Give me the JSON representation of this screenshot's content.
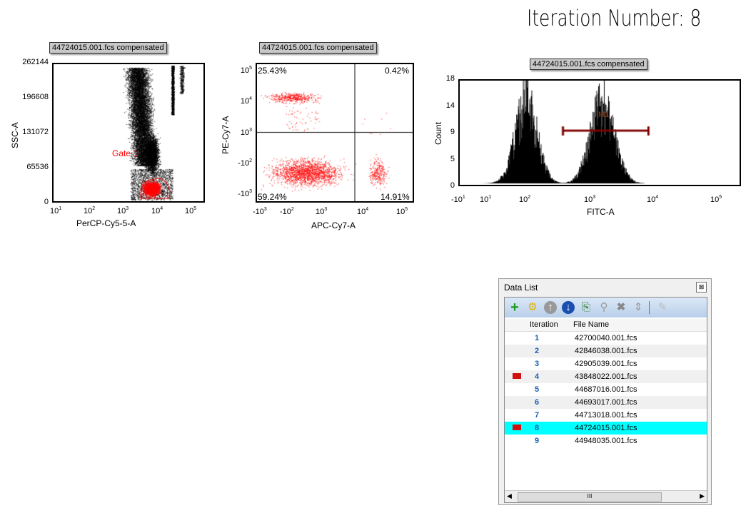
{
  "header": {
    "title": "Iteration Number: 8"
  },
  "plots": [
    {
      "title": "44724015.001.fcs compensated",
      "xlabel": "PerCP-Cy5-5-A",
      "ylabel": "SSC-A",
      "yticks": [
        "262144",
        "196608",
        "131072",
        "65536",
        "0"
      ],
      "xticks": [
        {
          "b": "10",
          "e": "1"
        },
        {
          "b": "10",
          "e": "2"
        },
        {
          "b": "10",
          "e": "3"
        },
        {
          "b": "10",
          "e": "4"
        },
        {
          "b": "10",
          "e": "5"
        }
      ],
      "gate_label": "Gate 1",
      "gate_color": "#ff0000"
    },
    {
      "title": "44724015.001.fcs compensated",
      "xlabel": "APC-Cy7-A",
      "ylabel": "PE-Cy7-A",
      "yticks": [
        {
          "b": "10",
          "e": "5"
        },
        {
          "b": "10",
          "e": "4"
        },
        {
          "b": "10",
          "e": "3"
        },
        {
          "b": "-10",
          "e": "2"
        },
        {
          "b": "-10",
          "e": "3"
        }
      ],
      "xticks": [
        {
          "b": "-10",
          "e": "3"
        },
        {
          "b": "-10",
          "e": "2"
        },
        {
          "b": "10",
          "e": "3"
        },
        {
          "b": "10",
          "e": "4"
        },
        {
          "b": "10",
          "e": "5"
        }
      ],
      "quadrants": {
        "UL": "25.43%",
        "UR": "0.42%",
        "LL": "59.24%",
        "LR": "14.91%"
      }
    },
    {
      "title": "44724015.001.fcs compensated",
      "xlabel": "FITC-A",
      "ylabel": "Count",
      "yticks": [
        "18",
        "14",
        "9",
        "5",
        "0"
      ],
      "xticks": [
        {
          "b": "-10",
          "e": "1"
        },
        {
          "b": "10",
          "e": "1"
        },
        {
          "b": "10",
          "e": "2"
        },
        {
          "b": "10",
          "e": "3"
        },
        {
          "b": "10",
          "e": "4"
        },
        {
          "b": "10",
          "e": "5"
        }
      ],
      "marker_label": "M1",
      "marker_color": "#800000"
    }
  ],
  "chart_data": {
    "type": "histogram",
    "title": "44724015.001.fcs compensated",
    "xlabel": "FITC-A",
    "ylabel": "Count",
    "ylim": [
      0,
      18
    ],
    "peaks": [
      {
        "x": 100,
        "height": 18
      },
      {
        "x": 1500,
        "height": 18
      }
    ],
    "marker": {
      "name": "M1",
      "range": [
        400,
        8500
      ],
      "y": 9
    }
  },
  "datalist": {
    "title": "Data List",
    "close": "⊠",
    "toolbar": [
      "add",
      "settings",
      "move-up",
      "move-down",
      "export",
      "search",
      "delete",
      "sort",
      "edit"
    ],
    "columns": [
      "Iteration",
      "File Name"
    ],
    "rows": [
      {
        "it": "1",
        "fn": "42700040.001.fcs",
        "flag": false
      },
      {
        "it": "2",
        "fn": "42846038.001.fcs",
        "flag": false
      },
      {
        "it": "3",
        "fn": "42905039.001.fcs",
        "flag": false
      },
      {
        "it": "4",
        "fn": "43848022.001.fcs",
        "flag": true
      },
      {
        "it": "5",
        "fn": "44687016.001.fcs",
        "flag": false
      },
      {
        "it": "6",
        "fn": "44693017.001.fcs",
        "flag": false
      },
      {
        "it": "7",
        "fn": "44713018.001.fcs",
        "flag": false
      },
      {
        "it": "8",
        "fn": "44724015.001.fcs",
        "flag": true,
        "selected": true
      },
      {
        "it": "9",
        "fn": "44948035.001.fcs",
        "flag": false
      }
    ],
    "scroll_grip": "III"
  }
}
